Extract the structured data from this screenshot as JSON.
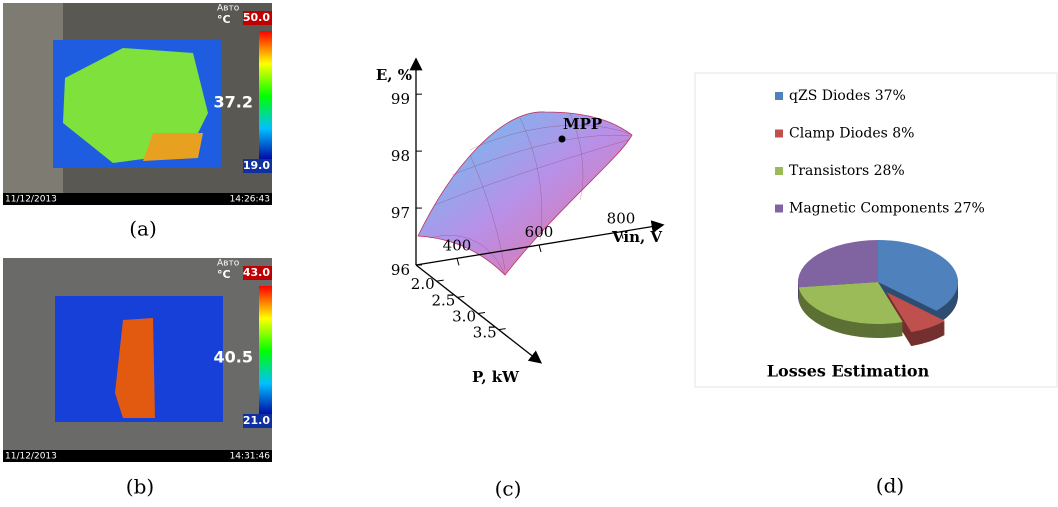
{
  "thermal_images": [
    {
      "mode": "Авто",
      "unit": "°C",
      "max": "50.0",
      "reading": "37.2",
      "min": "19.0",
      "date": "11/12/2013",
      "time": "14:26:43"
    },
    {
      "mode": "Авто",
      "unit": "°C",
      "max": "43.0",
      "reading": "40.5",
      "min": "21.0",
      "date": "11/12/2013",
      "time": "14:31:46"
    }
  ],
  "captions": [
    "(a)",
    "(b)",
    "(c)",
    "(d)"
  ],
  "chart_data": [
    {
      "type": "surface",
      "xlabel": "Vin, V",
      "ylabel": "P, kW",
      "zlabel": "E, %",
      "xlim": [
        300,
        900
      ],
      "xticks": [
        400,
        600,
        800
      ],
      "ylim": [
        1.5,
        4.5
      ],
      "yticks": [
        {
          "value": 2.0,
          "label": "2.0"
        },
        {
          "value": 2.5,
          "label": "2.5"
        },
        {
          "value": 3.0,
          "label": "3.0"
        },
        {
          "value": 3.5,
          "label": "3.5"
        }
      ],
      "zlim": [
        96,
        99.6
      ],
      "zticks": [
        96,
        97,
        98,
        99
      ],
      "annotation": "MPP"
    },
    {
      "type": "pie",
      "title": "Losses Estimation",
      "categories": [
        "qZS Diodes 37%",
        "Clamp Diodes 8%",
        "Transistors 28%",
        "Magnetic Components 27%"
      ],
      "values": [
        37,
        8,
        28,
        27
      ],
      "colors": [
        "#4f81bd",
        "#c0504d",
        "#9bbb59",
        "#8064a2"
      ],
      "exploded": [
        false,
        true,
        false,
        false
      ]
    }
  ]
}
